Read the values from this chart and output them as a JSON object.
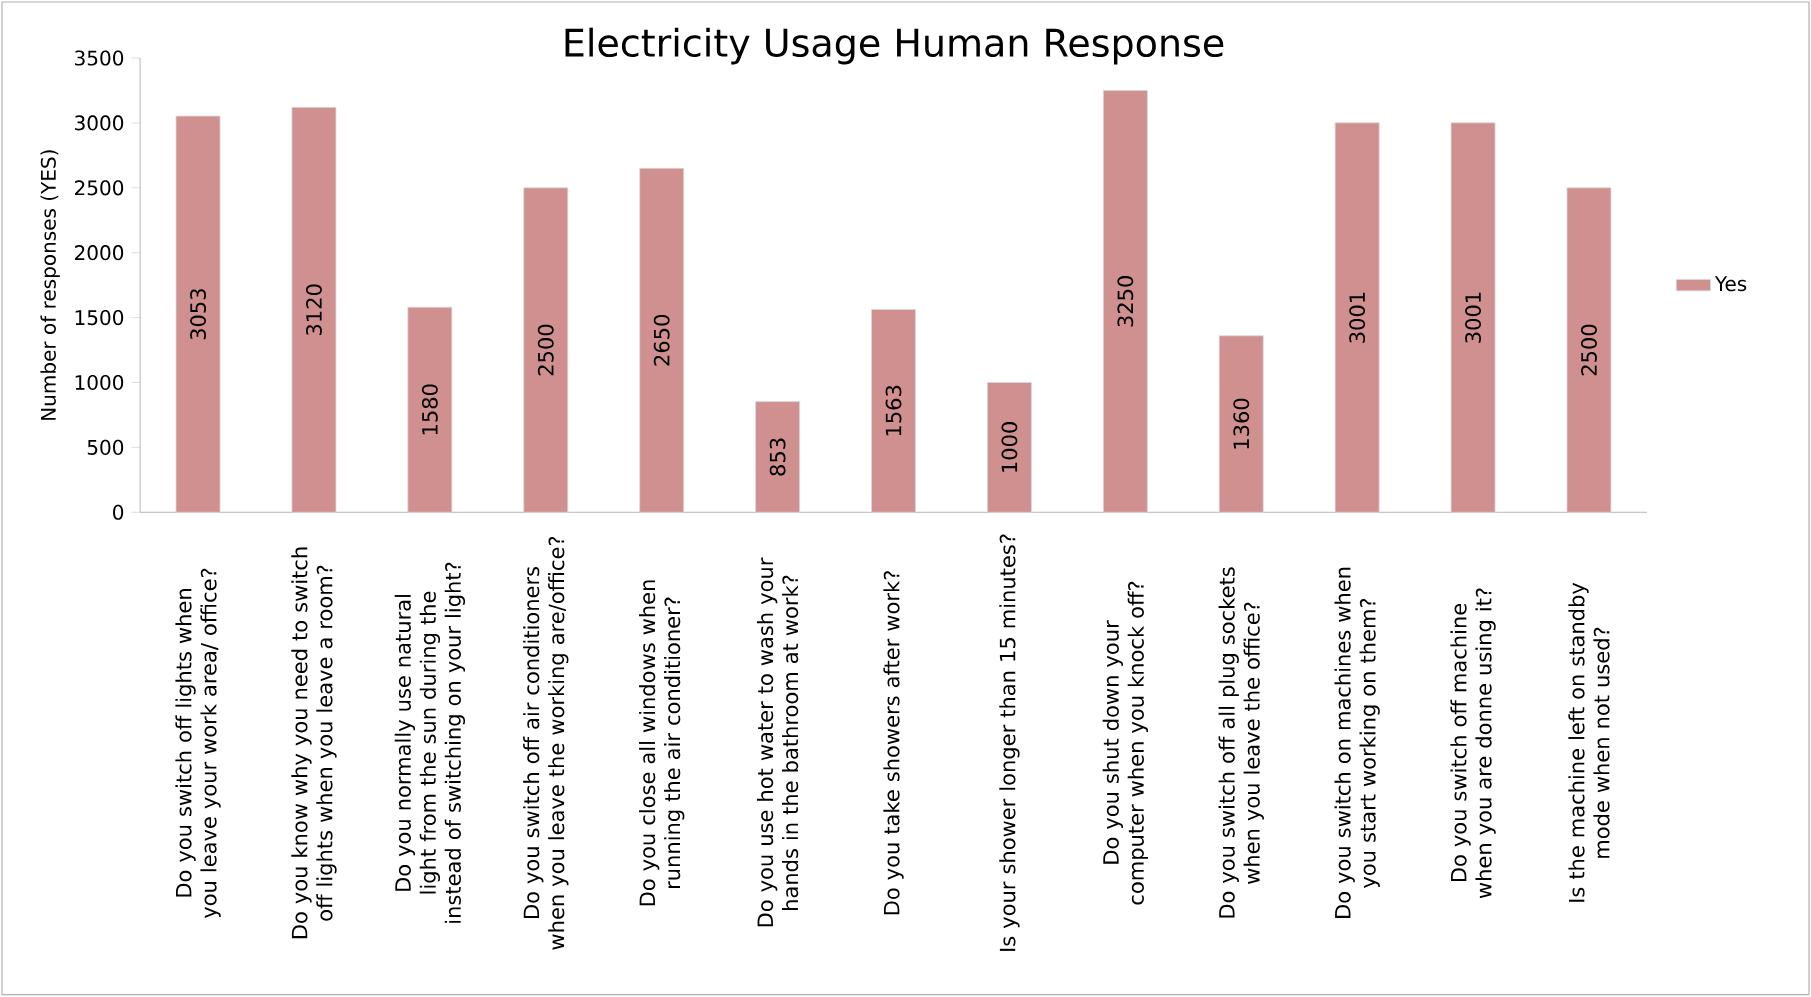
{
  "chart_data": {
    "type": "bar",
    "title": "Electricity Usage Human Response",
    "ylabel": "Number of responses (YES)",
    "categories": [
      "Do you  switch off lights when you leave your work area/  office?",
      "Do you know why you need to switch off lights when you leave a room?",
      "Do you normally use natural light from the sun during the instead of switching on your light?",
      "Do you switch off air conditioners when you leave the working are/office?",
      "Do you close all windows when running the air conditioner?",
      "Do you use hot water to wash your hands in the bathroom at work?",
      "Do you take showers after work?",
      "Is your shower longer than 15 minutes?",
      "Do you shut down your computer when you knock off?",
      "Do you switch off all plug sockets when you leave the office?",
      "Do you switch on machines when you start working on them?",
      "Do you switch off machine when you are donne using it?",
      "Is the machine left on standby mode when not used?"
    ],
    "series": [
      {
        "name": "Yes",
        "color": "#d09090",
        "values": [
          3053,
          3120,
          1580,
          2500,
          2650,
          853,
          1563,
          1000,
          3250,
          1360,
          3001,
          3001,
          2500
        ]
      }
    ],
    "ylim": [
      0,
      3500
    ],
    "yticks": [
      0,
      500,
      1000,
      1500,
      2000,
      2500,
      3000,
      3500
    ],
    "data_labels": true,
    "legend": "right"
  }
}
